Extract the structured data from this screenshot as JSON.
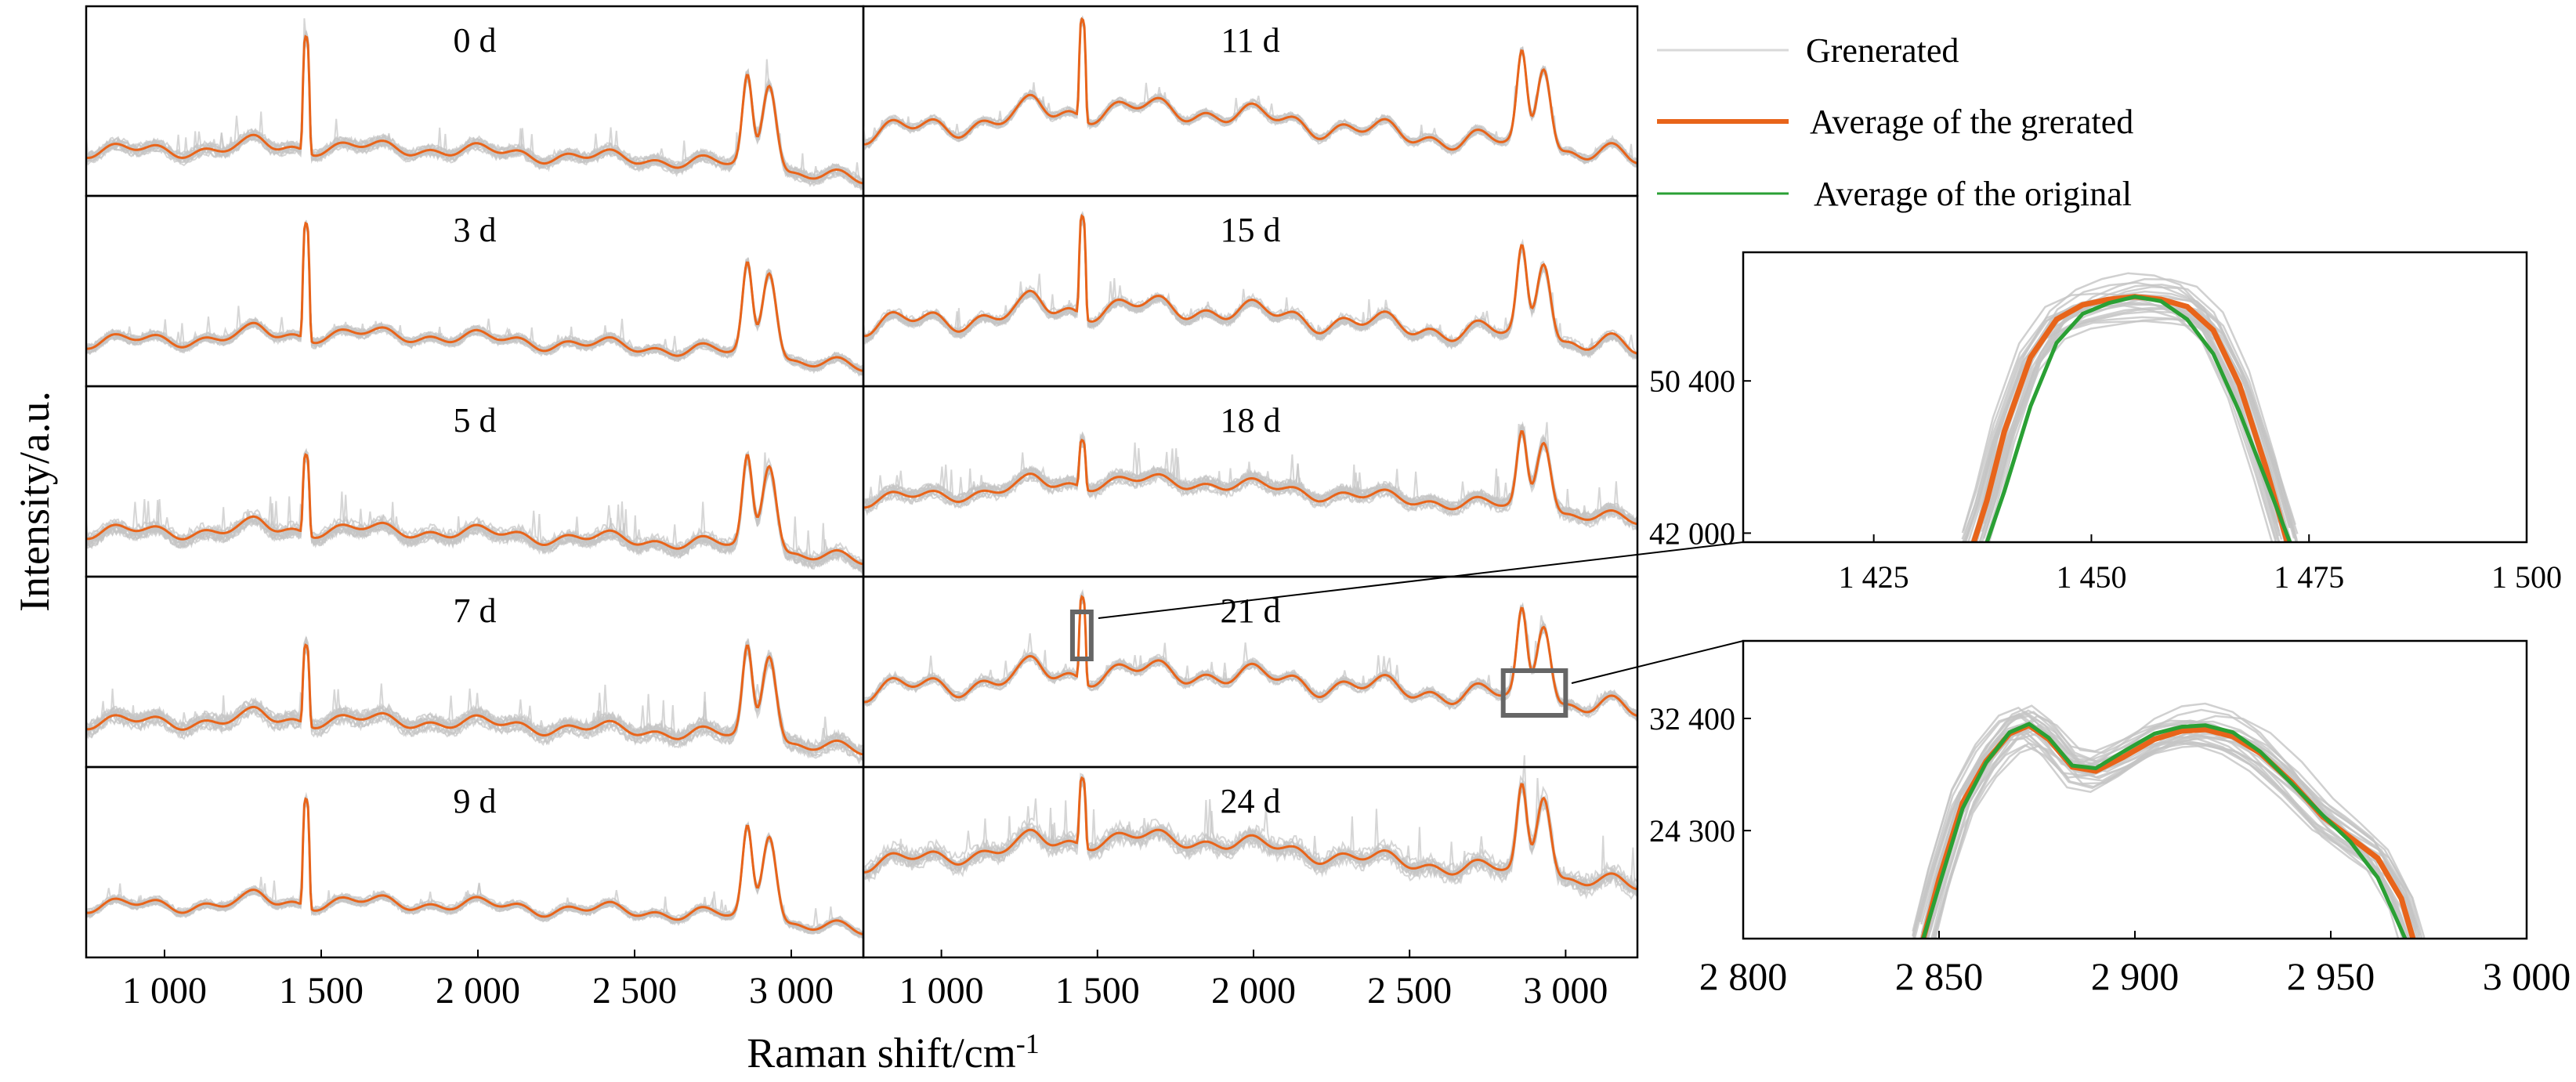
{
  "figure": {
    "ylabel": "Intensity/a.u.",
    "xlabel": "Raman shift/cm",
    "xlabel_sup": "-1"
  },
  "legend": {
    "items": [
      {
        "label": "Grenerated",
        "color": "#d9d9d9"
      },
      {
        "label": "Average of the grerated",
        "color": "#e8641a"
      },
      {
        "label": "Average of the original",
        "color": "#2aa034"
      }
    ]
  },
  "colors": {
    "generated": "#c4c4c4",
    "avg_generated": "#e8641a",
    "avg_original": "#2aa034",
    "frame": "#000000",
    "highlight_box": "#666666"
  },
  "chart_data": [
    {
      "type": "line",
      "description_key": "main_panels",
      "xlim": [
        750,
        3230
      ],
      "xticks": [
        1000,
        1500,
        2000,
        2500,
        3000
      ],
      "xtick_labels": [
        "1 000",
        "1 500",
        "2 000",
        "2 500",
        "3 000"
      ],
      "panels": [
        {
          "label": "0 d",
          "profile": {
            "base": 0.2,
            "wave": 0.05,
            "slope": 0.015,
            "mid": 0.06,
            "peak": 0.93,
            "p2900": 0.58,
            "noise": 0.06
          }
        },
        {
          "label": "3 d",
          "profile": {
            "base": 0.2,
            "wave": 0.05,
            "slope": 0.01,
            "mid": 0.08,
            "peak": 0.93,
            "p2900": 0.58,
            "noise": 0.05
          }
        },
        {
          "label": "5 d",
          "profile": {
            "base": 0.2,
            "wave": 0.05,
            "slope": 0.015,
            "mid": 0.05,
            "peak": 0.7,
            "p2900": 0.58,
            "noise": 0.08
          }
        },
        {
          "label": "7 d",
          "profile": {
            "base": 0.2,
            "wave": 0.05,
            "slope": 0.015,
            "mid": 0.05,
            "peak": 0.7,
            "p2900": 0.58,
            "noise": 0.08
          }
        },
        {
          "label": "9 d",
          "profile": {
            "base": 0.25,
            "wave": 0.05,
            "slope": 0.01,
            "mid": 0.05,
            "peak": 0.93,
            "p2900": 0.58,
            "noise": 0.04
          }
        },
        {
          "label": "11 d",
          "profile": {
            "base": 0.3,
            "wave": 0.08,
            "slope": 0.005,
            "mid": 0.2,
            "peak": 0.93,
            "p2900": 0.58,
            "noise": 0.04
          }
        },
        {
          "label": "15 d",
          "profile": {
            "base": 0.3,
            "wave": 0.08,
            "slope": 0.005,
            "mid": 0.15,
            "peak": 0.93,
            "p2900": 0.55,
            "noise": 0.06
          }
        },
        {
          "label": "18 d",
          "profile": {
            "base": 0.4,
            "wave": 0.05,
            "slope": 0.0,
            "mid": 0.15,
            "peak": 0.7,
            "p2900": 0.48,
            "noise": 0.07
          }
        },
        {
          "label": "21 d",
          "profile": {
            "base": 0.4,
            "wave": 0.08,
            "slope": 0.0,
            "mid": 0.15,
            "peak": 0.93,
            "p2900": 0.55,
            "noise": 0.05
          }
        },
        {
          "label": "24 d",
          "profile": {
            "base": 0.5,
            "wave": 0.06,
            "slope": 0.0,
            "mid": 0.2,
            "peak": 0.93,
            "p2900": 0.55,
            "noise": 0.1
          }
        }
      ]
    },
    {
      "type": "line",
      "description_key": "zoom_1450",
      "xlim": [
        1410,
        1500
      ],
      "ylim": [
        41500,
        57500
      ],
      "xticks": [
        1425,
        1450,
        1475,
        1500
      ],
      "xtick_labels": [
        "1 425",
        "1 450",
        "1 475",
        "1 500"
      ],
      "yticks": [
        42000,
        50400
      ],
      "ytick_labels": [
        "42 000",
        "50 400"
      ],
      "series": [
        {
          "name": "Average of the grerated",
          "x": [
            1436.5,
            1438,
            1440,
            1443,
            1446,
            1449,
            1452,
            1455,
            1458,
            1461,
            1464,
            1467,
            1470,
            1472.5
          ],
          "y": [
            41500,
            43800,
            47600,
            51700,
            53800,
            54600,
            54900,
            55050,
            54900,
            54500,
            53200,
            50200,
            45700,
            41500
          ]
        },
        {
          "name": "Average of the original",
          "x": [
            1438,
            1440,
            1443,
            1446,
            1449,
            1452,
            1455,
            1458,
            1461,
            1464,
            1467,
            1470,
            1472.8
          ],
          "y": [
            41500,
            44300,
            49000,
            52500,
            54100,
            54700,
            55050,
            54800,
            53800,
            51900,
            48700,
            45000,
            41500
          ]
        }
      ]
    },
    {
      "type": "line",
      "description_key": "zoom_2900",
      "xlim": [
        2800,
        3000
      ],
      "ylim": [
        16500,
        38000
      ],
      "xticks": [
        2800,
        2850,
        2900,
        2950,
        3000
      ],
      "xtick_labels": [
        "2 800",
        "2 850",
        "2 900",
        "2 950",
        "3 000"
      ],
      "yticks": [
        24300,
        32400
      ],
      "ytick_labels": [
        "24 300",
        "32 400"
      ],
      "series": [
        {
          "name": "Average of the grerated",
          "x": [
            2846,
            2850,
            2856,
            2862,
            2868,
            2873,
            2878,
            2884,
            2890,
            2897,
            2905,
            2912,
            2918,
            2925,
            2932,
            2940,
            2948,
            2955,
            2962,
            2968,
            2971
          ],
          "y": [
            16500,
            20800,
            26300,
            29300,
            31300,
            31900,
            30900,
            28900,
            28600,
            29600,
            30900,
            31500,
            31600,
            31100,
            29900,
            27800,
            25300,
            23800,
            22300,
            19400,
            16500
          ]
        },
        {
          "name": "Average of the original",
          "x": [
            2846,
            2850,
            2856,
            2862,
            2868,
            2873,
            2878,
            2884,
            2890,
            2897,
            2905,
            2912,
            2918,
            2925,
            2932,
            2940,
            2948,
            2955,
            2962,
            2966,
            2969
          ],
          "y": [
            16500,
            20300,
            25900,
            29200,
            31400,
            32000,
            31000,
            29000,
            28800,
            30000,
            31300,
            31800,
            31900,
            31400,
            30000,
            27700,
            25400,
            23500,
            20900,
            18400,
            16500
          ]
        }
      ]
    }
  ]
}
